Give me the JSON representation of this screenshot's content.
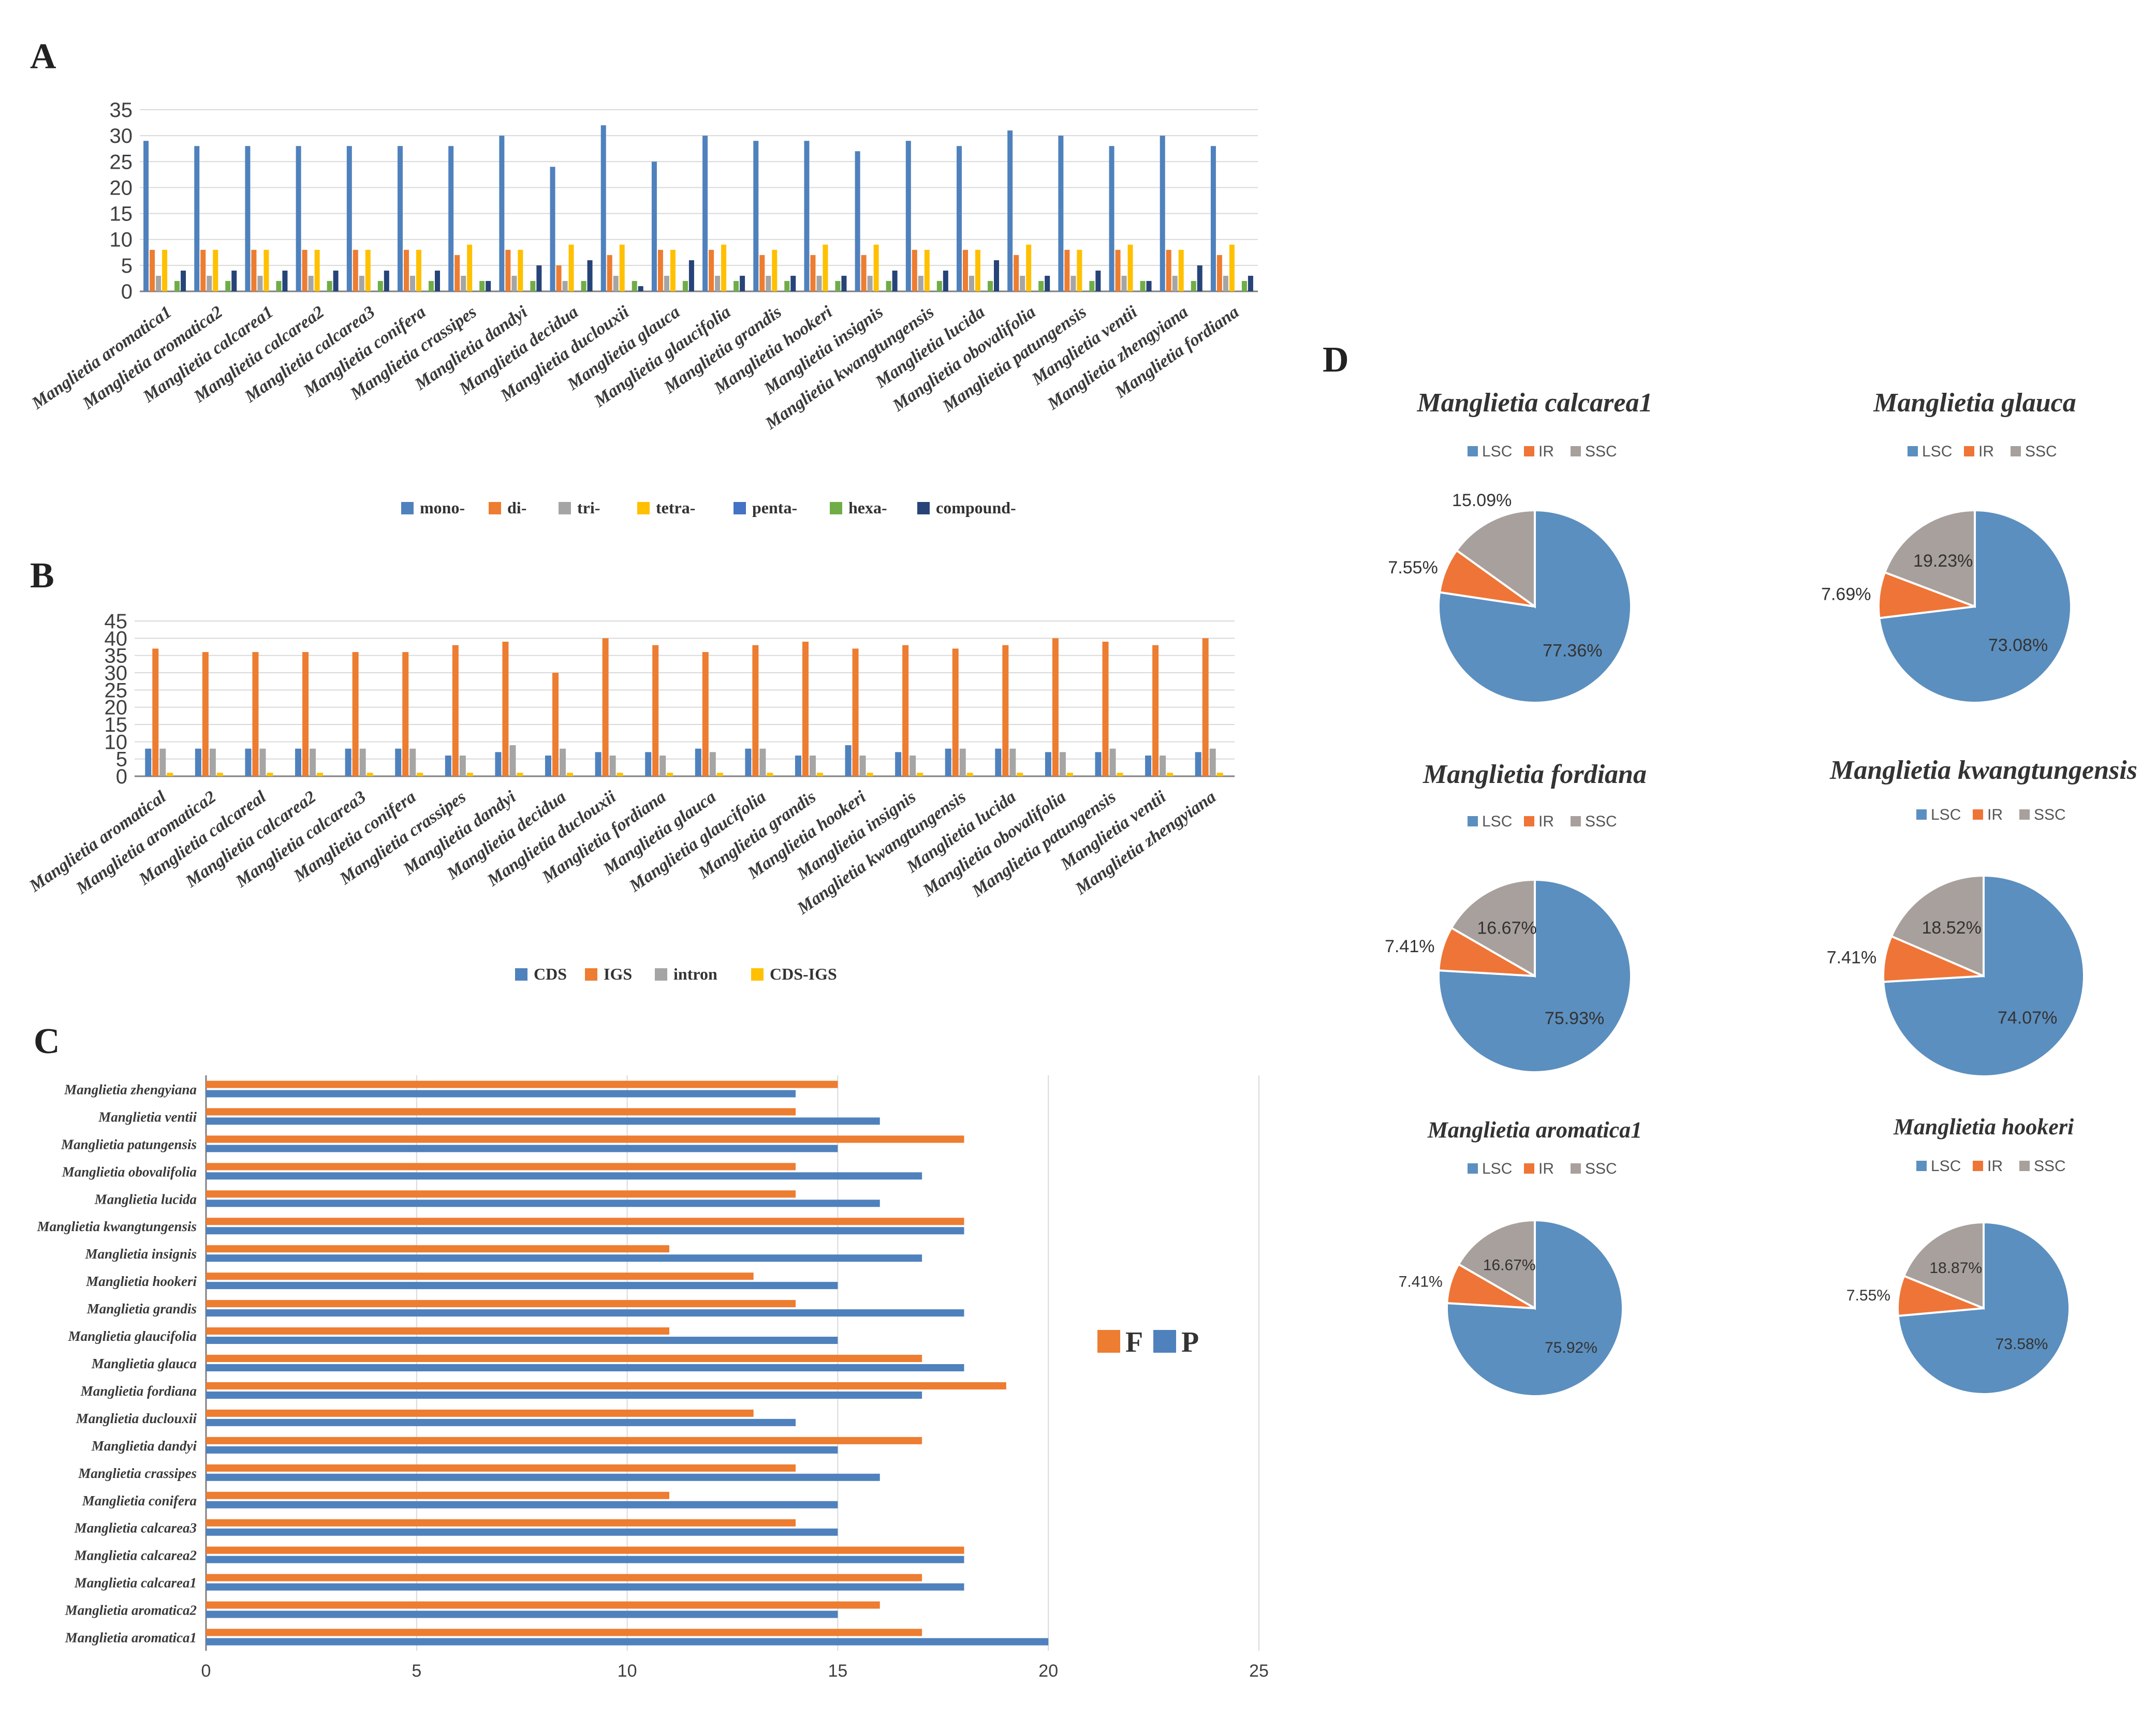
{
  "colors": {
    "mono": "#4f81bd",
    "di": "#ed7d31",
    "tri": "#a5a5a5",
    "tetra": "#ffc000",
    "penta": "#4472c4",
    "hexa": "#70ad47",
    "compound": "#264478",
    "LSC": "#5b8fbf",
    "IR": "#ee7537",
    "SSC": "#a8a09c",
    "F": "#ed7d31",
    "P": "#4f81bd",
    "grid": "#d9d9d9",
    "axis": "#7f7f7f",
    "text": "#404040"
  },
  "chart_data": [
    {
      "panel": "A",
      "type": "bar",
      "categories": [
        "Manglietia aromatica1",
        "Manglietia aromatica2",
        "Manglietia calcarea1",
        "Manglietia calcarea2",
        "Manglietia calcarea3",
        "Manglietia conifera",
        "Manglietia crassipes",
        "Manglietia dandyi",
        "Manglietia decidua",
        "Manglietia duclouxii",
        "Manglietia glauca",
        "Manglietia glaucifolia",
        "Manglietia grandis",
        "Manglietia hookeri",
        "Manglietia insignis",
        "Manglietia kwangtungensis",
        "Manglietia lucida",
        "Manglietia obovalifolia",
        "Manglietia patungensis",
        "Manglietia ventii",
        "Manglietia zhengyiana",
        "Manglietia fordiana"
      ],
      "series": [
        {
          "name": "mono-",
          "key": "mono",
          "values": [
            29,
            28,
            28,
            28,
            28,
            28,
            28,
            30,
            24,
            32,
            25,
            30,
            29,
            29,
            27,
            29,
            28,
            31,
            30,
            28,
            30,
            28
          ]
        },
        {
          "name": "di-",
          "key": "di",
          "values": [
            8,
            8,
            8,
            8,
            8,
            8,
            7,
            8,
            5,
            7,
            8,
            8,
            7,
            7,
            7,
            8,
            8,
            7,
            8,
            8,
            8,
            7
          ]
        },
        {
          "name": "tri-",
          "key": "tri",
          "values": [
            3,
            3,
            3,
            3,
            3,
            3,
            3,
            3,
            2,
            3,
            3,
            3,
            3,
            3,
            3,
            3,
            3,
            3,
            3,
            3,
            3,
            3
          ]
        },
        {
          "name": "tetra-",
          "key": "tetra",
          "values": [
            8,
            8,
            8,
            8,
            8,
            8,
            9,
            8,
            9,
            9,
            8,
            9,
            8,
            9,
            9,
            8,
            8,
            9,
            8,
            9,
            8,
            9
          ]
        },
        {
          "name": "penta-",
          "key": "penta",
          "values": [
            0,
            0,
            0,
            0,
            0,
            0,
            0,
            0,
            0,
            0,
            0,
            0,
            0,
            0,
            0,
            0,
            0,
            0,
            0,
            0,
            0,
            0
          ]
        },
        {
          "name": "hexa-",
          "key": "hexa",
          "values": [
            2,
            2,
            2,
            2,
            2,
            2,
            2,
            2,
            2,
            2,
            2,
            2,
            2,
            2,
            2,
            2,
            2,
            2,
            2,
            2,
            2,
            2
          ]
        },
        {
          "name": "compound-",
          "key": "compound",
          "values": [
            4,
            4,
            4,
            4,
            4,
            4,
            2,
            5,
            6,
            1,
            6,
            3,
            3,
            3,
            4,
            4,
            6,
            3,
            4,
            2,
            5,
            3
          ]
        }
      ],
      "ylim": [
        0,
        35
      ],
      "yticks": [
        0,
        5,
        10,
        15,
        20,
        25,
        30,
        35
      ],
      "grid": true,
      "legend": "bottom"
    },
    {
      "panel": "B",
      "type": "bar",
      "categories": [
        "Manglietia aromatical",
        "Manglietia aromatica2",
        "Manglietia calcareal",
        "Manglietia calcarea2",
        "Manglietia calcarea3",
        "Manglietia conifera",
        "Manglietia crassipes",
        "Manglietia dandyi",
        "Manglietia decidua",
        "Manglietia duclouxii",
        "Manglietia fordiana",
        "Manglietia glauca",
        "Manglietia glaucifolia",
        "Manglietia grandis",
        "Manglietia hookeri",
        "Manglietia insignis",
        "Manglietia kwangtungensis",
        "Manglietia lucida",
        "Manglietia obovalifolia",
        "Manglietia patungensis",
        "Manglietia ventii",
        "Manglietia zhengyiana"
      ],
      "series": [
        {
          "name": "CDS",
          "key": "mono",
          "values": [
            8,
            8,
            8,
            8,
            8,
            8,
            6,
            7,
            6,
            7,
            7,
            8,
            8,
            6,
            9,
            7,
            8,
            8,
            7,
            7,
            6,
            7
          ]
        },
        {
          "name": "IGS",
          "key": "di",
          "values": [
            37,
            36,
            36,
            36,
            36,
            36,
            38,
            39,
            30,
            40,
            38,
            36,
            38,
            39,
            37,
            38,
            37,
            38,
            40,
            39,
            38,
            40
          ]
        },
        {
          "name": "intron",
          "key": "tri",
          "values": [
            8,
            8,
            8,
            8,
            8,
            8,
            6,
            9,
            8,
            6,
            6,
            7,
            8,
            6,
            6,
            6,
            8,
            8,
            7,
            8,
            6,
            8
          ]
        },
        {
          "name": "CDS-IGS",
          "key": "tetra",
          "values": [
            1,
            1,
            1,
            1,
            1,
            1,
            1,
            1,
            1,
            1,
            1,
            1,
            1,
            1,
            1,
            1,
            1,
            1,
            1,
            1,
            1,
            1
          ]
        }
      ],
      "ylim": [
        0,
        45
      ],
      "yticks": [
        0,
        5,
        10,
        15,
        20,
        25,
        30,
        35,
        40,
        45
      ],
      "grid": true,
      "legend": "bottom"
    },
    {
      "panel": "C",
      "type": "bar",
      "orientation": "horizontal",
      "categories": [
        "Manglietia zhengyiana",
        "Manglietia ventii",
        "Manglietia patungensis",
        "Manglietia obovalifolia",
        "Manglietia lucida",
        "Manglietia kwangtungensis",
        "Manglietia insignis",
        "Manglietia hookeri",
        "Manglietia grandis",
        "Manglietia glaucifolia",
        "Manglietia glauca",
        "Manglietia fordiana",
        "Manglietia duclouxii",
        "Manglietia dandyi",
        "Manglietia crassipes",
        "Manglietia conifera",
        "Manglietia calcarea3",
        "Manglietia calcarea2",
        "Manglietia calcarea1",
        "Manglietia aromatica2",
        "Manglietia aromatica1"
      ],
      "series": [
        {
          "name": "F",
          "key": "F",
          "values": [
            15,
            14,
            18,
            14,
            14,
            18,
            11,
            13,
            14,
            11,
            17,
            19,
            13,
            17,
            14,
            11,
            14,
            18,
            17,
            16,
            17
          ]
        },
        {
          "name": "P",
          "key": "P",
          "values": [
            14,
            16,
            15,
            17,
            16,
            18,
            17,
            15,
            18,
            15,
            18,
            17,
            14,
            15,
            16,
            15,
            15,
            18,
            18,
            15,
            20
          ]
        }
      ],
      "xlim": [
        0,
        25
      ],
      "xticks": [
        0,
        5,
        10,
        15,
        20,
        25
      ],
      "grid": true,
      "legend": "right"
    },
    {
      "panel": "D",
      "type": "pie",
      "legend_labels": [
        "LSC",
        "IR",
        "SSC"
      ],
      "pies": [
        {
          "title": "Manglietia calcarea1",
          "values": [
            77.36,
            7.55,
            15.09
          ],
          "labels": [
            "77.36%",
            "7.55%",
            "15.09%"
          ]
        },
        {
          "title": "Manglietia glauca",
          "values": [
            73.08,
            7.69,
            19.23
          ],
          "labels": [
            "73.08%",
            "7.69%",
            "19.23%"
          ]
        },
        {
          "title": "Manglietia fordiana",
          "values": [
            75.93,
            7.41,
            16.67
          ],
          "labels": [
            "75.93%",
            "7.41%",
            "16.67%"
          ]
        },
        {
          "title": "Manglietia kwangtungensis",
          "values": [
            74.07,
            7.41,
            18.52
          ],
          "labels": [
            "74.07%",
            "7.41%",
            "18.52%"
          ]
        },
        {
          "title": "Manglietia aromatica1",
          "values": [
            75.92,
            7.41,
            16.67
          ],
          "labels": [
            "75.92%",
            "7.41%",
            "16.67%"
          ]
        },
        {
          "title": "Manglietia hookeri",
          "values": [
            73.58,
            7.55,
            18.87
          ],
          "labels": [
            "73.58%",
            "7.55%",
            "18.87%"
          ]
        }
      ]
    }
  ],
  "panel_labels": {
    "A": "A",
    "B": "B",
    "C": "C",
    "D": "D"
  }
}
